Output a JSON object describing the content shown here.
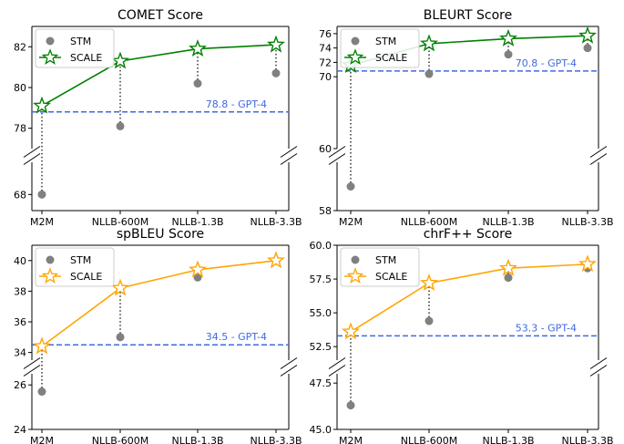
{
  "chart_data": [
    {
      "type": "line",
      "title": "COMET Score",
      "categories": [
        "M2M",
        "NLLB-600M",
        "NLLB-1.3B",
        "NLLB-3.3B"
      ],
      "ytick_labels_upper": [
        "78",
        "80",
        "82"
      ],
      "ytick_labels_lower": [
        "68"
      ],
      "ylim_upper": [
        77,
        83
      ],
      "ylim_lower": [
        67.6,
        68.8
      ],
      "series": [
        {
          "name": "STM",
          "values": [
            68.0,
            78.1,
            80.2,
            80.7
          ]
        },
        {
          "name": "SCALE",
          "values": [
            79.1,
            81.3,
            81.9,
            82.1
          ]
        }
      ],
      "reference": {
        "value": 78.8,
        "label": "78.8 - GPT-4"
      },
      "legend": [
        "STM",
        "SCALE"
      ],
      "legend_location": "top-left",
      "color": "#008000",
      "ref_color": "#4169e1"
    },
    {
      "type": "line",
      "title": "BLEURT Score",
      "categories": [
        "M2M",
        "NLLB-600M",
        "NLLB-1.3B",
        "NLLB-3.3B"
      ],
      "ytick_labels_upper": [
        "60",
        "70",
        "72",
        "74",
        "76"
      ],
      "ytick_labels_lower": [
        "58"
      ],
      "ylim_upper": [
        60,
        77
      ],
      "ylim_lower": [
        58,
        60
      ],
      "series": [
        {
          "name": "STM",
          "values": [
            59.0,
            70.4,
            73.1,
            74.0
          ]
        },
        {
          "name": "SCALE",
          "values": [
            71.6,
            74.6,
            75.3,
            75.7
          ]
        }
      ],
      "reference": {
        "value": 70.8,
        "label": "70.8 - GPT-4"
      },
      "legend": [
        "STM",
        "SCALE"
      ],
      "legend_location": "top-left",
      "color": "#008000",
      "ref_color": "#4169e1"
    },
    {
      "type": "line",
      "title": "spBLEU Score",
      "categories": [
        "M2M",
        "NLLB-600M",
        "NLLB-1.3B",
        "NLLB-3.3B"
      ],
      "ytick_labels_upper": [
        "34",
        "36",
        "38",
        "40"
      ],
      "ytick_labels_lower": [
        "26",
        "24"
      ],
      "ylim_upper": [
        33.5,
        41
      ],
      "ylim_lower": [
        24,
        26.5
      ],
      "series": [
        {
          "name": "STM",
          "values": [
            25.7,
            35.0,
            38.9,
            40.0
          ]
        },
        {
          "name": "SCALE",
          "values": [
            34.4,
            38.2,
            39.4,
            40.0
          ]
        }
      ],
      "reference": {
        "value": 34.5,
        "label": "34.5 - GPT-4"
      },
      "legend": [
        "STM",
        "SCALE"
      ],
      "legend_location": "top-left",
      "color": "#ffa500",
      "ref_color": "#4169e1"
    },
    {
      "type": "line",
      "title": "chrF++ Score",
      "categories": [
        "M2M",
        "NLLB-600M",
        "NLLB-1.3B",
        "NLLB-3.3B"
      ],
      "ytick_labels_upper": [
        "52.5",
        "55.0",
        "57.5",
        "60.0"
      ],
      "ytick_labels_lower": [
        "47.5",
        "45.0"
      ],
      "ylim_upper": [
        51.5,
        60.0
      ],
      "ylim_lower": [
        45.0,
        48.0
      ],
      "series": [
        {
          "name": "STM",
          "values": [
            46.3,
            54.4,
            57.6,
            58.3
          ]
        },
        {
          "name": "SCALE",
          "values": [
            53.6,
            57.2,
            58.3,
            58.6
          ]
        }
      ],
      "reference": {
        "value": 53.3,
        "label": "53.3 - GPT-4"
      },
      "legend": [
        "STM",
        "SCALE"
      ],
      "legend_location": "top-left",
      "color": "#ffa500",
      "ref_color": "#4169e1"
    }
  ]
}
